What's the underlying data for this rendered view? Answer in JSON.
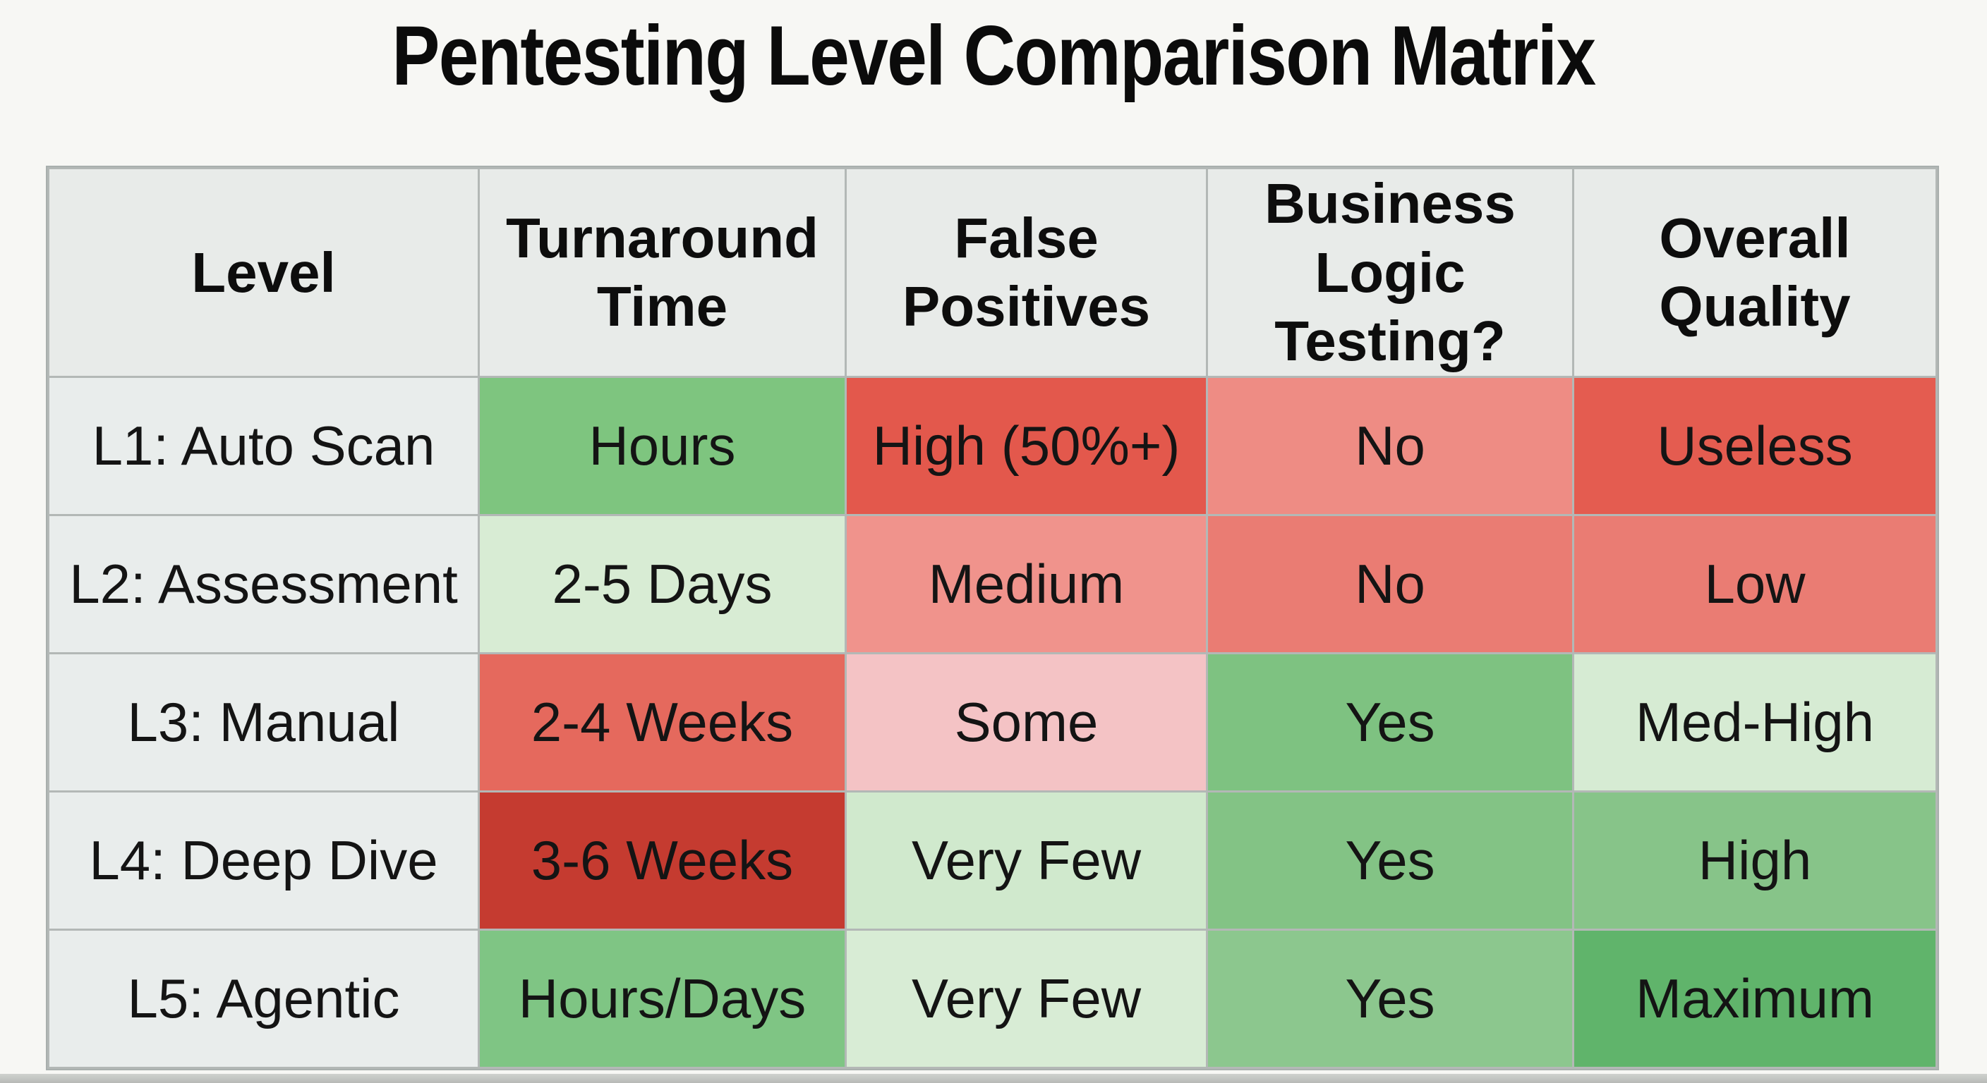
{
  "title": "Pentesting Level Comparison Matrix",
  "chart_data": {
    "type": "table",
    "title": "Pentesting Level Comparison Matrix",
    "columns": [
      "Level",
      "Turnaround\nTime",
      "False\nPositives",
      "Business\nLogic Testing?",
      "Overall\nQuality"
    ],
    "rows": [
      {
        "level": "L1: Auto Scan",
        "cells": [
          {
            "text": "Hours",
            "bg": "#7ec57f"
          },
          {
            "text": "High (50%+)",
            "bg": "#e3584c"
          },
          {
            "text": "No",
            "bg": "#ee8c84"
          },
          {
            "text": "Useless",
            "bg": "#e45c50"
          }
        ]
      },
      {
        "level": "L2: Assessment",
        "cells": [
          {
            "text": "2-5 Days",
            "bg": "#d8ecd4"
          },
          {
            "text": "Medium",
            "bg": "#f0938c"
          },
          {
            "text": "No",
            "bg": "#ea7c73"
          },
          {
            "text": "Low",
            "bg": "#ea7c73"
          }
        ]
      },
      {
        "level": "L3: Manual",
        "cells": [
          {
            "text": "2-4 Weeks",
            "bg": "#e5695d"
          },
          {
            "text": "Some",
            "bg": "#f4c3c5"
          },
          {
            "text": "Yes",
            "bg": "#7ec281"
          },
          {
            "text": "Med-High",
            "bg": "#d6ebd3"
          }
        ]
      },
      {
        "level": "L4: Deep Dive",
        "cells": [
          {
            "text": "3-6 Weeks",
            "bg": "#c53b30"
          },
          {
            "text": "Very Few",
            "bg": "#d0e9cd"
          },
          {
            "text": "Yes",
            "bg": "#83c385"
          },
          {
            "text": "High",
            "bg": "#87c489"
          }
        ]
      },
      {
        "level": "L5: Agentic",
        "cells": [
          {
            "text": "Hours/Days",
            "bg": "#7fc584"
          },
          {
            "text": "Very Few",
            "bg": "#d8ecd5"
          },
          {
            "text": "Yes",
            "bg": "#8cc78e"
          },
          {
            "text": "Maximum",
            "bg": "#60b46b"
          }
        ]
      }
    ]
  },
  "colors": {
    "page_bg": "#f7f7f4",
    "header_bg": "#e8ebe9",
    "level_col_bg": "#e9edec",
    "grid_border": "#b3b8b6",
    "text": "#101010"
  }
}
